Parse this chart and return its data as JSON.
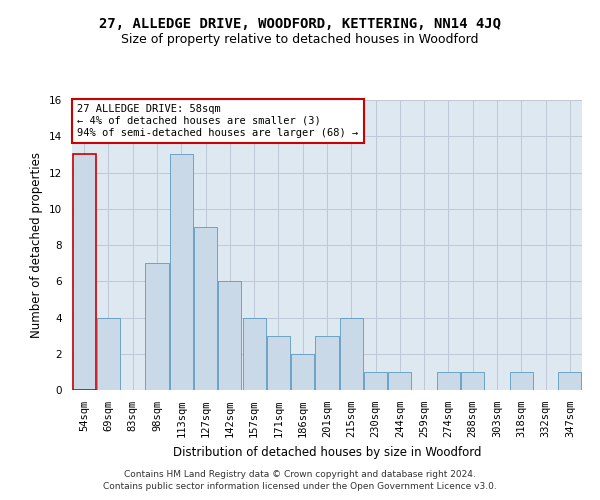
{
  "title": "27, ALLEDGE DRIVE, WOODFORD, KETTERING, NN14 4JQ",
  "subtitle": "Size of property relative to detached houses in Woodford",
  "xlabel": "Distribution of detached houses by size in Woodford",
  "ylabel": "Number of detached properties",
  "categories": [
    "54sqm",
    "69sqm",
    "83sqm",
    "98sqm",
    "113sqm",
    "127sqm",
    "142sqm",
    "157sqm",
    "171sqm",
    "186sqm",
    "201sqm",
    "215sqm",
    "230sqm",
    "244sqm",
    "259sqm",
    "274sqm",
    "288sqm",
    "303sqm",
    "318sqm",
    "332sqm",
    "347sqm"
  ],
  "values": [
    13,
    4,
    0,
    7,
    13,
    9,
    6,
    4,
    3,
    2,
    3,
    4,
    1,
    1,
    0,
    1,
    1,
    0,
    1,
    0,
    1
  ],
  "bar_color": "#c9d9e8",
  "bar_edge_color": "#5a9abf",
  "highlight_bar_index": 0,
  "highlight_edge_color": "#cc0000",
  "annotation_line1": "27 ALLEDGE DRIVE: 58sqm",
  "annotation_line2": "← 4% of detached houses are smaller (3)",
  "annotation_line3": "94% of semi-detached houses are larger (68) →",
  "annotation_box_color": "#ffffff",
  "annotation_box_edge_color": "#cc0000",
  "ylim": [
    0,
    16
  ],
  "yticks": [
    0,
    2,
    4,
    6,
    8,
    10,
    12,
    14,
    16
  ],
  "grid_color": "#c0c8d8",
  "background_color": "#dde8f0",
  "footer_line1": "Contains HM Land Registry data © Crown copyright and database right 2024.",
  "footer_line2": "Contains public sector information licensed under the Open Government Licence v3.0.",
  "title_fontsize": 10,
  "subtitle_fontsize": 9,
  "xlabel_fontsize": 8.5,
  "ylabel_fontsize": 8.5,
  "tick_fontsize": 7.5,
  "annotation_fontsize": 7.5,
  "footer_fontsize": 6.5
}
